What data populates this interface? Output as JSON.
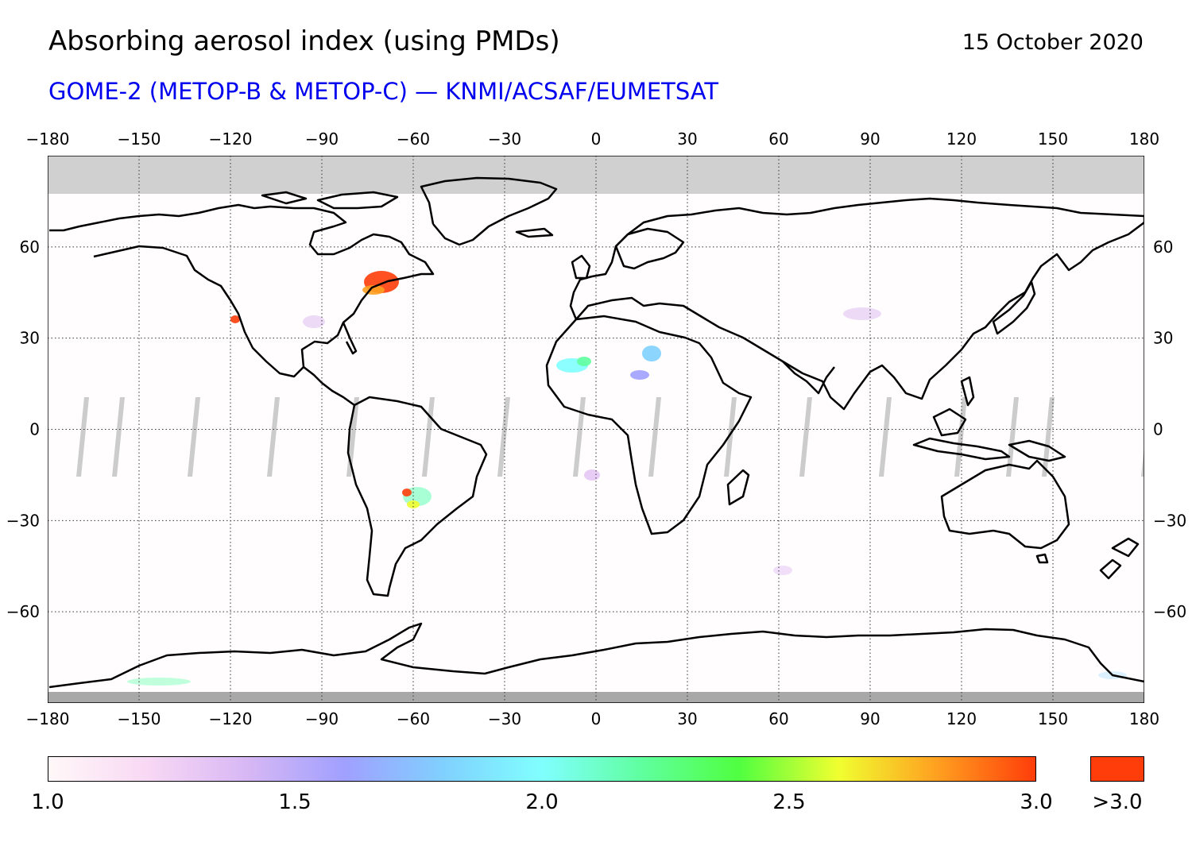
{
  "title": "Absorbing aerosol index (using PMDs)",
  "date": "15 October 2020",
  "subtitle": "GOME-2 (METOP-B & METOP-C) — KNMI/ACSAF/EUMETSAT",
  "colors": {
    "subtitle": "#0000ee",
    "nodata_polar": "#d0d0d0",
    "nodata_south": "#a8a8a8",
    "background_field": "#fffdfd",
    "gap_stripes": "#cccccc",
    "overflow": "#ff3d0a"
  },
  "map": {
    "lon_ticks": [
      "−180",
      "−150",
      "−120",
      "−90",
      "−60",
      "−30",
      "0",
      "30",
      "60",
      "90",
      "120",
      "150",
      "180"
    ],
    "lat_ticks": [
      "60",
      "30",
      "0",
      "−30",
      "−60"
    ],
    "lon_range": [
      -180,
      180
    ],
    "lat_range": [
      -90,
      90
    ],
    "grid": "dotted"
  },
  "colorbar": {
    "labels": [
      "1.0",
      "1.5",
      "2.0",
      "2.5",
      "3.0"
    ],
    "range": [
      1.0,
      3.0
    ],
    "overflow_label": ">3.0",
    "stops": [
      "#fff8f8",
      "#f8d8f4",
      "#d8b8f4",
      "#a0a0ff",
      "#80d0ff",
      "#80ffff",
      "#60ffa0",
      "#50ff40",
      "#f0ff30",
      "#ffa020",
      "#ff3d0a"
    ]
  }
}
